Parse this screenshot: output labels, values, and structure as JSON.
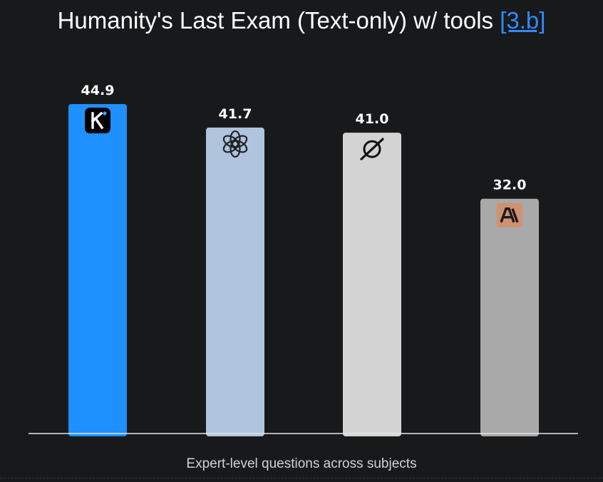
{
  "header": {
    "title": "Humanity's Last Exam (Text-only) w/ tools",
    "ref_link": "[3.b]",
    "link_color": "#2f8bff"
  },
  "chart_data": {
    "type": "bar",
    "categories": [
      "",
      "",
      "",
      ""
    ],
    "values": [
      44.9,
      41.7,
      41.0,
      32.0
    ],
    "value_labels": [
      "44.9",
      "41.7",
      "41.0",
      "32.0"
    ],
    "bar_colors": [
      "#1e90ff",
      "#b0c4de",
      "#d3d3d3",
      "#a9a9a9"
    ],
    "bar_icons": [
      "kimi-icon",
      "openai-icon",
      "grok-icon",
      "anthropic-icon"
    ],
    "xlabel": "Expert-level questions across subjects",
    "ylabel": "",
    "ylim": [
      0,
      50
    ],
    "grid": false,
    "legend": "none"
  }
}
